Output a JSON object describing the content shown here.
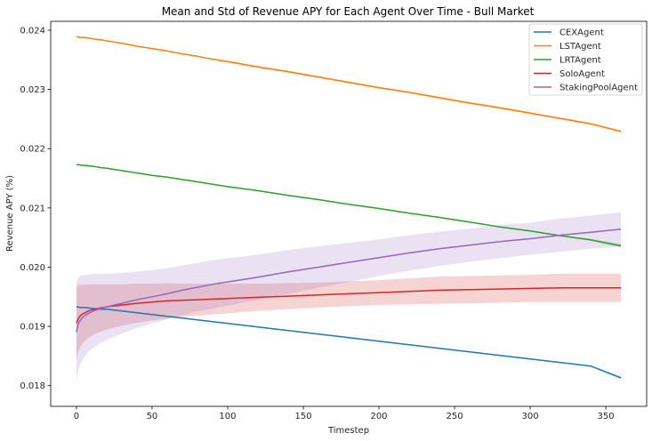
{
  "chart_data": {
    "type": "line",
    "title": "Mean and Std of Revenue APY for Each Agent Over Time - Bull Market",
    "xlabel": "Timestep",
    "ylabel": "Revenue APY (%)",
    "xlim": [
      -17,
      377
    ],
    "ylim": [
      0.01765,
      0.02415
    ],
    "xticks": [
      0,
      50,
      100,
      150,
      200,
      250,
      300,
      350
    ],
    "xtick_labels": [
      "0",
      "50",
      "100",
      "150",
      "200",
      "250",
      "300",
      "350"
    ],
    "yticks": [
      0.018,
      0.019,
      0.02,
      0.021,
      0.022,
      0.023,
      0.024
    ],
    "ytick_labels": [
      "0.018",
      "0.019",
      "0.020",
      "0.021",
      "0.022",
      "0.023",
      "0.024"
    ],
    "grid": false,
    "legend_position": "top-right",
    "x": [
      0,
      1,
      2,
      3,
      5,
      8,
      12,
      16,
      20,
      30,
      40,
      50,
      60,
      70,
      80,
      90,
      100,
      120,
      140,
      160,
      180,
      200,
      220,
      240,
      260,
      280,
      300,
      320,
      340,
      360
    ],
    "series": [
      {
        "name": "CEXAgent",
        "color": "#1f77b4",
        "values": [
          0.01933,
          0.01933,
          0.01932,
          0.01932,
          0.01932,
          0.01931,
          0.0193,
          0.01929,
          0.01929,
          0.01926,
          0.01923,
          0.0192,
          0.01917,
          0.01914,
          0.01911,
          0.01908,
          0.01905,
          0.01899,
          0.01893,
          0.01887,
          0.01881,
          0.01875,
          0.01869,
          0.01863,
          0.01857,
          0.01851,
          0.01845,
          0.01839,
          0.01833,
          0.01813
        ],
        "std_lower": [
          0.01932,
          0.01932,
          0.01931,
          0.01931,
          0.01931,
          0.0193,
          0.01929,
          0.01928,
          0.01928,
          0.01925,
          0.01922,
          0.01919,
          0.01916,
          0.01913,
          0.0191,
          0.01907,
          0.01904,
          0.01898,
          0.01892,
          0.01886,
          0.0188,
          0.01874,
          0.01868,
          0.01862,
          0.01856,
          0.0185,
          0.01844,
          0.01838,
          0.01832,
          0.01811
        ],
        "std_upper": [
          0.01934,
          0.01934,
          0.01933,
          0.01933,
          0.01933,
          0.01932,
          0.01931,
          0.0193,
          0.0193,
          0.01927,
          0.01924,
          0.01921,
          0.01918,
          0.01915,
          0.01912,
          0.01909,
          0.01906,
          0.019,
          0.01894,
          0.01888,
          0.01882,
          0.01876,
          0.0187,
          0.01864,
          0.01858,
          0.01852,
          0.01846,
          0.0184,
          0.01834,
          0.01815
        ]
      },
      {
        "name": "LSTAgent",
        "color": "#ff7f0e",
        "values": [
          0.02389,
          0.02389,
          0.02388,
          0.02388,
          0.02388,
          0.02387,
          0.02385,
          0.02384,
          0.02382,
          0.02378,
          0.02373,
          0.02369,
          0.02365,
          0.0236,
          0.02356,
          0.02351,
          0.02347,
          0.02338,
          0.0233,
          0.02321,
          0.02312,
          0.02303,
          0.02295,
          0.02286,
          0.02277,
          0.02269,
          0.0226,
          0.02251,
          0.02242,
          0.02229
        ],
        "std_lower": [
          0.02388,
          0.02388,
          0.02387,
          0.02387,
          0.02387,
          0.02386,
          0.02384,
          0.02383,
          0.02381,
          0.02377,
          0.02372,
          0.02368,
          0.02364,
          0.02359,
          0.02355,
          0.0235,
          0.02345,
          0.02336,
          0.02328,
          0.02319,
          0.0231,
          0.02301,
          0.02293,
          0.02284,
          0.02275,
          0.02267,
          0.02258,
          0.02249,
          0.0224,
          0.02227
        ],
        "std_upper": [
          0.0239,
          0.0239,
          0.02389,
          0.02389,
          0.02389,
          0.02388,
          0.02386,
          0.02385,
          0.02383,
          0.02379,
          0.02374,
          0.0237,
          0.02366,
          0.02361,
          0.02357,
          0.02352,
          0.02349,
          0.0234,
          0.02332,
          0.02323,
          0.02314,
          0.02305,
          0.02297,
          0.02288,
          0.02279,
          0.02271,
          0.02262,
          0.02253,
          0.02244,
          0.02231
        ]
      },
      {
        "name": "LRTAgent",
        "color": "#2ca02c",
        "values": [
          0.02173,
          0.02173,
          0.02173,
          0.02172,
          0.02172,
          0.02171,
          0.0217,
          0.02168,
          0.02167,
          0.02163,
          0.02159,
          0.02155,
          0.02152,
          0.02148,
          0.02144,
          0.0214,
          0.02136,
          0.02129,
          0.02121,
          0.02114,
          0.02106,
          0.02099,
          0.02091,
          0.02084,
          0.02076,
          0.02068,
          0.02061,
          0.02053,
          0.02046,
          0.02036
        ],
        "std_lower": [
          0.02172,
          0.02172,
          0.02172,
          0.02171,
          0.02171,
          0.0217,
          0.02169,
          0.02167,
          0.02166,
          0.02162,
          0.02158,
          0.02154,
          0.02151,
          0.02147,
          0.02143,
          0.02139,
          0.02135,
          0.02128,
          0.0212,
          0.02113,
          0.02105,
          0.02098,
          0.0209,
          0.02083,
          0.02075,
          0.02067,
          0.0206,
          0.02052,
          0.02044,
          0.02033
        ],
        "std_upper": [
          0.02174,
          0.02174,
          0.02174,
          0.02173,
          0.02173,
          0.02172,
          0.02171,
          0.02169,
          0.02168,
          0.02164,
          0.0216,
          0.02156,
          0.02153,
          0.02149,
          0.02145,
          0.02141,
          0.02137,
          0.0213,
          0.02122,
          0.02115,
          0.02107,
          0.021,
          0.02092,
          0.02085,
          0.02077,
          0.02069,
          0.02062,
          0.02054,
          0.02048,
          0.02039
        ]
      },
      {
        "name": "SoloAgent",
        "color": "#d62728",
        "values": [
          0.01905,
          0.01912,
          0.01916,
          0.01919,
          0.01922,
          0.01926,
          0.01929,
          0.01931,
          0.01933,
          0.01936,
          0.01939,
          0.01941,
          0.01943,
          0.01944,
          0.01945,
          0.01946,
          0.01947,
          0.01949,
          0.01951,
          0.01953,
          0.01955,
          0.01957,
          0.01959,
          0.01961,
          0.01962,
          0.01963,
          0.01964,
          0.01965,
          0.01965,
          0.01965
        ],
        "std_lower": [
          0.01845,
          0.01855,
          0.01862,
          0.01868,
          0.01874,
          0.01881,
          0.01887,
          0.01891,
          0.01895,
          0.01901,
          0.01906,
          0.0191,
          0.01913,
          0.01916,
          0.01918,
          0.0192,
          0.01922,
          0.01926,
          0.01929,
          0.01932,
          0.01934,
          0.01936,
          0.01937,
          0.01938,
          0.01939,
          0.0194,
          0.01941,
          0.01941,
          0.01941,
          0.01941
        ],
        "std_upper": [
          0.01965,
          0.01969,
          0.0197,
          0.0197,
          0.0197,
          0.01971,
          0.01971,
          0.01971,
          0.01971,
          0.01971,
          0.01972,
          0.01972,
          0.01973,
          0.01972,
          0.01972,
          0.01972,
          0.01972,
          0.01972,
          0.01973,
          0.01974,
          0.01976,
          0.01978,
          0.01981,
          0.01984,
          0.01985,
          0.01986,
          0.01987,
          0.01989,
          0.01989,
          0.01989
        ]
      },
      {
        "name": "StakingPoolAgent",
        "color": "#9467bd",
        "values": [
          0.0189,
          0.01902,
          0.01908,
          0.01912,
          0.01917,
          0.01922,
          0.01927,
          0.0193,
          0.01933,
          0.01939,
          0.01945,
          0.0195,
          0.01955,
          0.01961,
          0.01966,
          0.01971,
          0.01975,
          0.01983,
          0.01992,
          0.02,
          0.02008,
          0.02016,
          0.02024,
          0.02031,
          0.02037,
          0.02043,
          0.02048,
          0.02054,
          0.02059,
          0.02064
        ],
        "std_lower": [
          0.01805,
          0.01823,
          0.01832,
          0.01838,
          0.01847,
          0.01857,
          0.01865,
          0.01872,
          0.01877,
          0.01888,
          0.01897,
          0.01905,
          0.01912,
          0.01919,
          0.01925,
          0.0193,
          0.01935,
          0.01945,
          0.01955,
          0.01965,
          0.01975,
          0.01985,
          0.01994,
          0.02002,
          0.02009,
          0.02015,
          0.02021,
          0.02026,
          0.02031,
          0.02035
        ],
        "std_upper": [
          0.01975,
          0.01981,
          0.01984,
          0.01986,
          0.01987,
          0.01987,
          0.01989,
          0.01988,
          0.01989,
          0.0199,
          0.01993,
          0.01995,
          0.01998,
          0.02003,
          0.02007,
          0.02012,
          0.02015,
          0.02021,
          0.02029,
          0.02035,
          0.02041,
          0.02047,
          0.02054,
          0.0206,
          0.02065,
          0.02071,
          0.02075,
          0.02082,
          0.02087,
          0.02093
        ]
      }
    ]
  }
}
